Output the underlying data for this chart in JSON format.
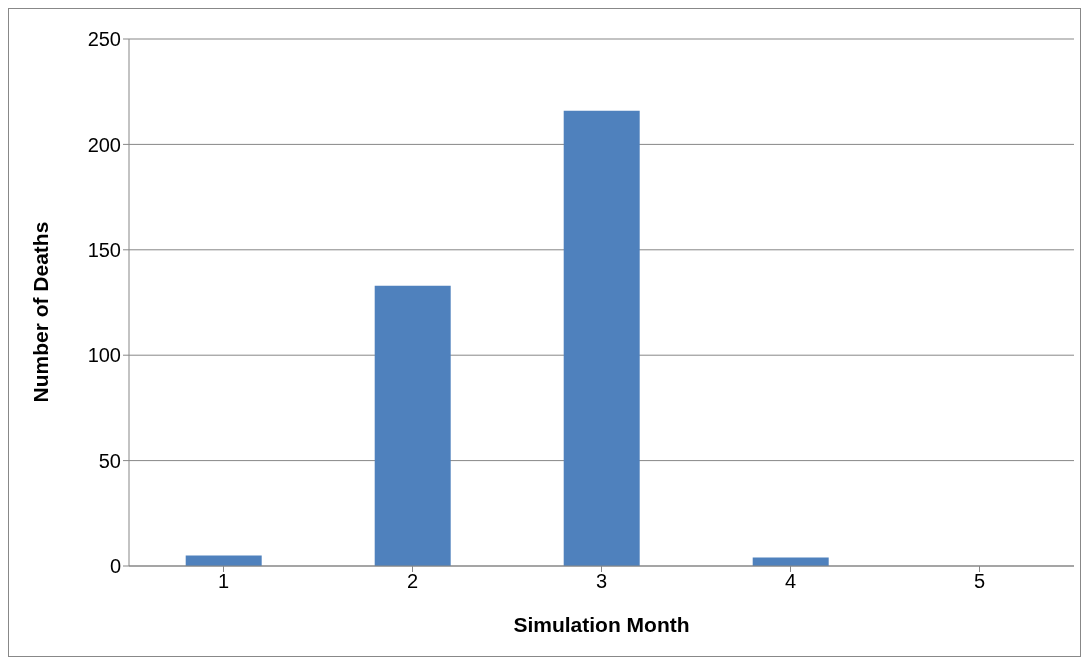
{
  "chart_data": {
    "type": "bar",
    "xlabel": "Simulation Month",
    "ylabel": "Number of Deaths",
    "categories": [
      "1",
      "2",
      "3",
      "4",
      "5"
    ],
    "series": [
      {
        "color": "#4f81bd",
        "values": [
          5,
          133,
          216,
          4,
          0
        ]
      }
    ],
    "ylim": [
      0,
      250
    ],
    "yticks": [
      0,
      50,
      100,
      150,
      200,
      250
    ],
    "grid": "y",
    "legend": false
  }
}
